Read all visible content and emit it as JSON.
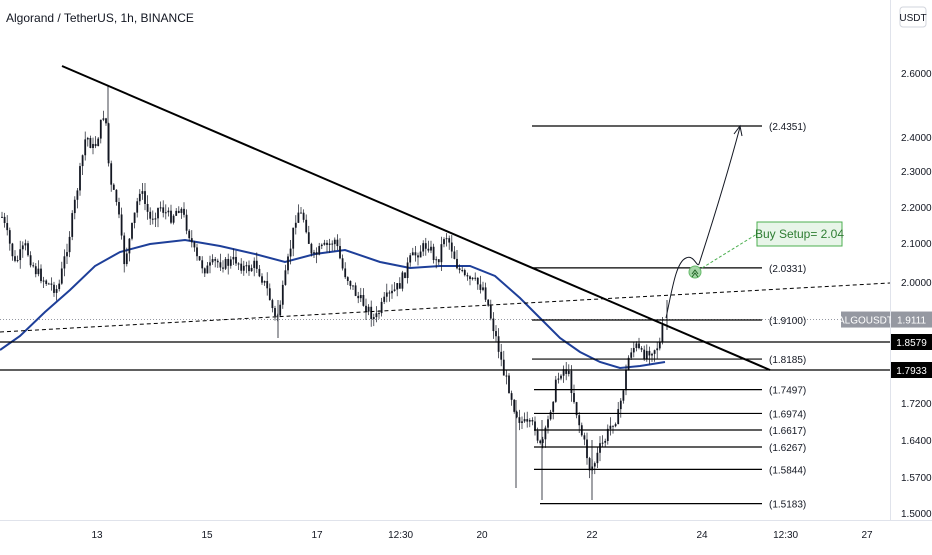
{
  "header": {
    "title": "Algorand / TetherUS, 1h, BINANCE",
    "currency_button": "USDT"
  },
  "chart_data": {
    "type": "candlestick",
    "symbol": "ALGOUSDT",
    "last_price": "1.9111",
    "y_axis_ticks": [
      {
        "label": "2.6000",
        "value": 2.6
      },
      {
        "label": "2.4000",
        "value": 2.4
      },
      {
        "label": "2.3000",
        "value": 2.3
      },
      {
        "label": "2.2000",
        "value": 2.2
      },
      {
        "label": "2.1000",
        "value": 2.1
      },
      {
        "label": "2.0000",
        "value": 2.0
      },
      {
        "label": "1.7200",
        "value": 1.72
      },
      {
        "label": "1.6400",
        "value": 1.64
      },
      {
        "label": "1.5700",
        "value": 1.57
      },
      {
        "label": "1.5000",
        "value": 1.5
      }
    ],
    "x_axis_ticks": [
      {
        "label": "13",
        "day": 13
      },
      {
        "label": "15",
        "day": 15
      },
      {
        "label": "17",
        "day": 17
      },
      {
        "label": "12:30",
        "day": 18.52
      },
      {
        "label": "20",
        "day": 20
      },
      {
        "label": "22",
        "day": 22
      },
      {
        "label": "24",
        "day": 24
      },
      {
        "label": "12:30",
        "day": 25.52
      },
      {
        "label": "27",
        "day": 27
      }
    ],
    "fib_levels": [
      {
        "label": "(2.4351)",
        "value": 2.4351
      },
      {
        "label": "(2.0331)",
        "value": 2.0331
      },
      {
        "label": "(1.9100)",
        "value": 1.91
      },
      {
        "label": "(1.8185)",
        "value": 1.8185
      },
      {
        "label": "(1.7497)",
        "value": 1.7497
      },
      {
        "label": "(1.6974)",
        "value": 1.6974
      },
      {
        "label": "(1.6617)",
        "value": 1.6617
      },
      {
        "label": "(1.6267)",
        "value": 1.6267
      },
      {
        "label": "(1.5844)",
        "value": 1.5844
      },
      {
        "label": "(1.5183)",
        "value": 1.5183
      }
    ],
    "horizontal_levels": [
      {
        "label": "1.8579",
        "value": 1.8579
      },
      {
        "label": "1.7933",
        "value": 1.7933
      }
    ],
    "annotation": "Buy Setup= 2.04",
    "colors": {
      "candle": "#131722",
      "moving_average": "#1e3f99",
      "trendline": "#000000",
      "annotation_border": "#4caf50",
      "annotation_fill": "#e8f5e9",
      "annotation_text": "#2e7d32",
      "last_price_badge": "#9598a1"
    },
    "grid": false
  }
}
